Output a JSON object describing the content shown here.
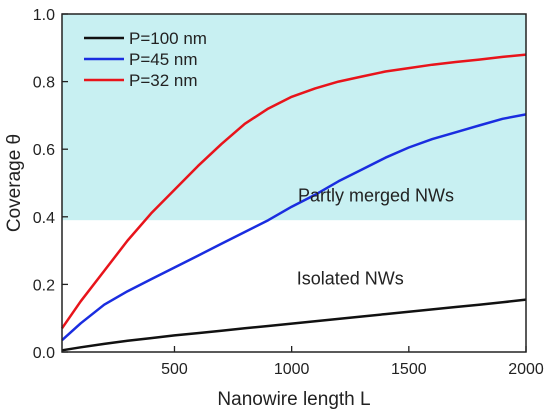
{
  "chart_data": {
    "type": "line",
    "xlabel": "Nanowire length L",
    "ylabel": "Coverage θ",
    "xlim": [
      20,
      2000
    ],
    "ylim": [
      0,
      1.0
    ],
    "xticks": [
      "500",
      "1000",
      "1500",
      "2000"
    ],
    "yticks": [
      "0.0",
      "0.2",
      "0.4",
      "0.6",
      "0.8",
      "1.0"
    ],
    "xtick_values": [
      500,
      1000,
      1500,
      2000
    ],
    "ytick_values": [
      0.0,
      0.2,
      0.4,
      0.6,
      0.8,
      1.0
    ],
    "grid": false,
    "legend_position": "top-left",
    "shaded_region": {
      "y_from": 0.39,
      "y_to": 1.0,
      "color": "#c8f0f2"
    },
    "annotations": [
      {
        "id": "merged",
        "text": "Partly merged NWs",
        "x": 1360,
        "y": 0.445
      },
      {
        "id": "isolated",
        "text": "Isolated NWs",
        "x": 1250,
        "y": 0.2
      }
    ],
    "series": [
      {
        "name": "P=100 nm",
        "color": "#111111",
        "x": [
          20,
          100,
          200,
          300,
          400,
          500,
          600,
          700,
          800,
          900,
          1000,
          1100,
          1200,
          1300,
          1400,
          1500,
          1600,
          1700,
          1800,
          1900,
          2000
        ],
        "y": [
          0.005,
          0.014,
          0.024,
          0.033,
          0.041,
          0.049,
          0.056,
          0.063,
          0.07,
          0.077,
          0.084,
          0.091,
          0.098,
          0.105,
          0.112,
          0.119,
          0.126,
          0.133,
          0.14,
          0.147,
          0.155
        ]
      },
      {
        "name": "P=45 nm",
        "color": "#1a2de0",
        "x": [
          20,
          100,
          200,
          300,
          400,
          500,
          600,
          700,
          800,
          900,
          1000,
          1100,
          1200,
          1300,
          1400,
          1500,
          1600,
          1700,
          1800,
          1900,
          2000
        ],
        "y": [
          0.035,
          0.085,
          0.14,
          0.18,
          0.215,
          0.25,
          0.285,
          0.32,
          0.355,
          0.39,
          0.43,
          0.465,
          0.505,
          0.54,
          0.575,
          0.605,
          0.63,
          0.65,
          0.67,
          0.69,
          0.703
        ]
      },
      {
        "name": "P=32 nm",
        "color": "#e8141b",
        "x": [
          20,
          100,
          200,
          300,
          400,
          500,
          600,
          700,
          800,
          900,
          1000,
          1100,
          1200,
          1300,
          1400,
          1500,
          1600,
          1700,
          1800,
          1900,
          2000
        ],
        "y": [
          0.07,
          0.15,
          0.24,
          0.33,
          0.41,
          0.48,
          0.55,
          0.615,
          0.675,
          0.72,
          0.755,
          0.78,
          0.8,
          0.815,
          0.83,
          0.84,
          0.85,
          0.858,
          0.865,
          0.873,
          0.88
        ]
      }
    ]
  }
}
